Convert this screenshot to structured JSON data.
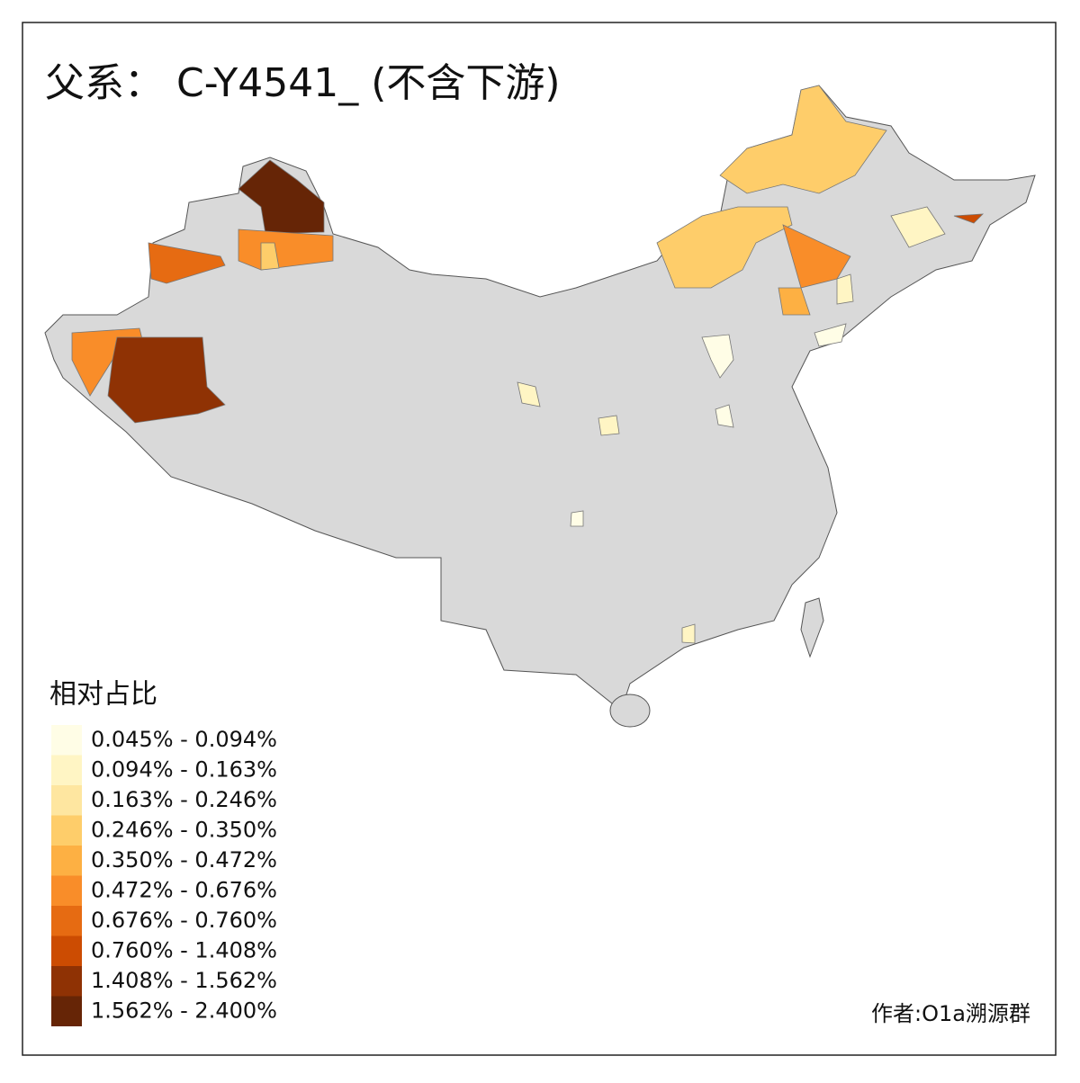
{
  "title": "父系： C-Y4541_ (不含下游)",
  "legend": {
    "title": "相对占比",
    "items": [
      {
        "label": "0.045% - 0.094%",
        "color": "#fffde6"
      },
      {
        "label": "0.094% - 0.163%",
        "color": "#fff5c4"
      },
      {
        "label": "0.163% - 0.246%",
        "color": "#fee6a0"
      },
      {
        "label": "0.246% - 0.350%",
        "color": "#fecd6a"
      },
      {
        "label": "0.350% - 0.472%",
        "color": "#fdb043"
      },
      {
        "label": "0.472% - 0.676%",
        "color": "#f98d29"
      },
      {
        "label": "0.676% - 0.760%",
        "color": "#e66b12"
      },
      {
        "label": "0.760% - 1.408%",
        "color": "#cc4c02"
      },
      {
        "label": "1.408% - 1.562%",
        "color": "#8f3204"
      },
      {
        "label": "1.562% - 2.400%",
        "color": "#662506"
      }
    ]
  },
  "credit": "作者:O1a溯源群"
}
